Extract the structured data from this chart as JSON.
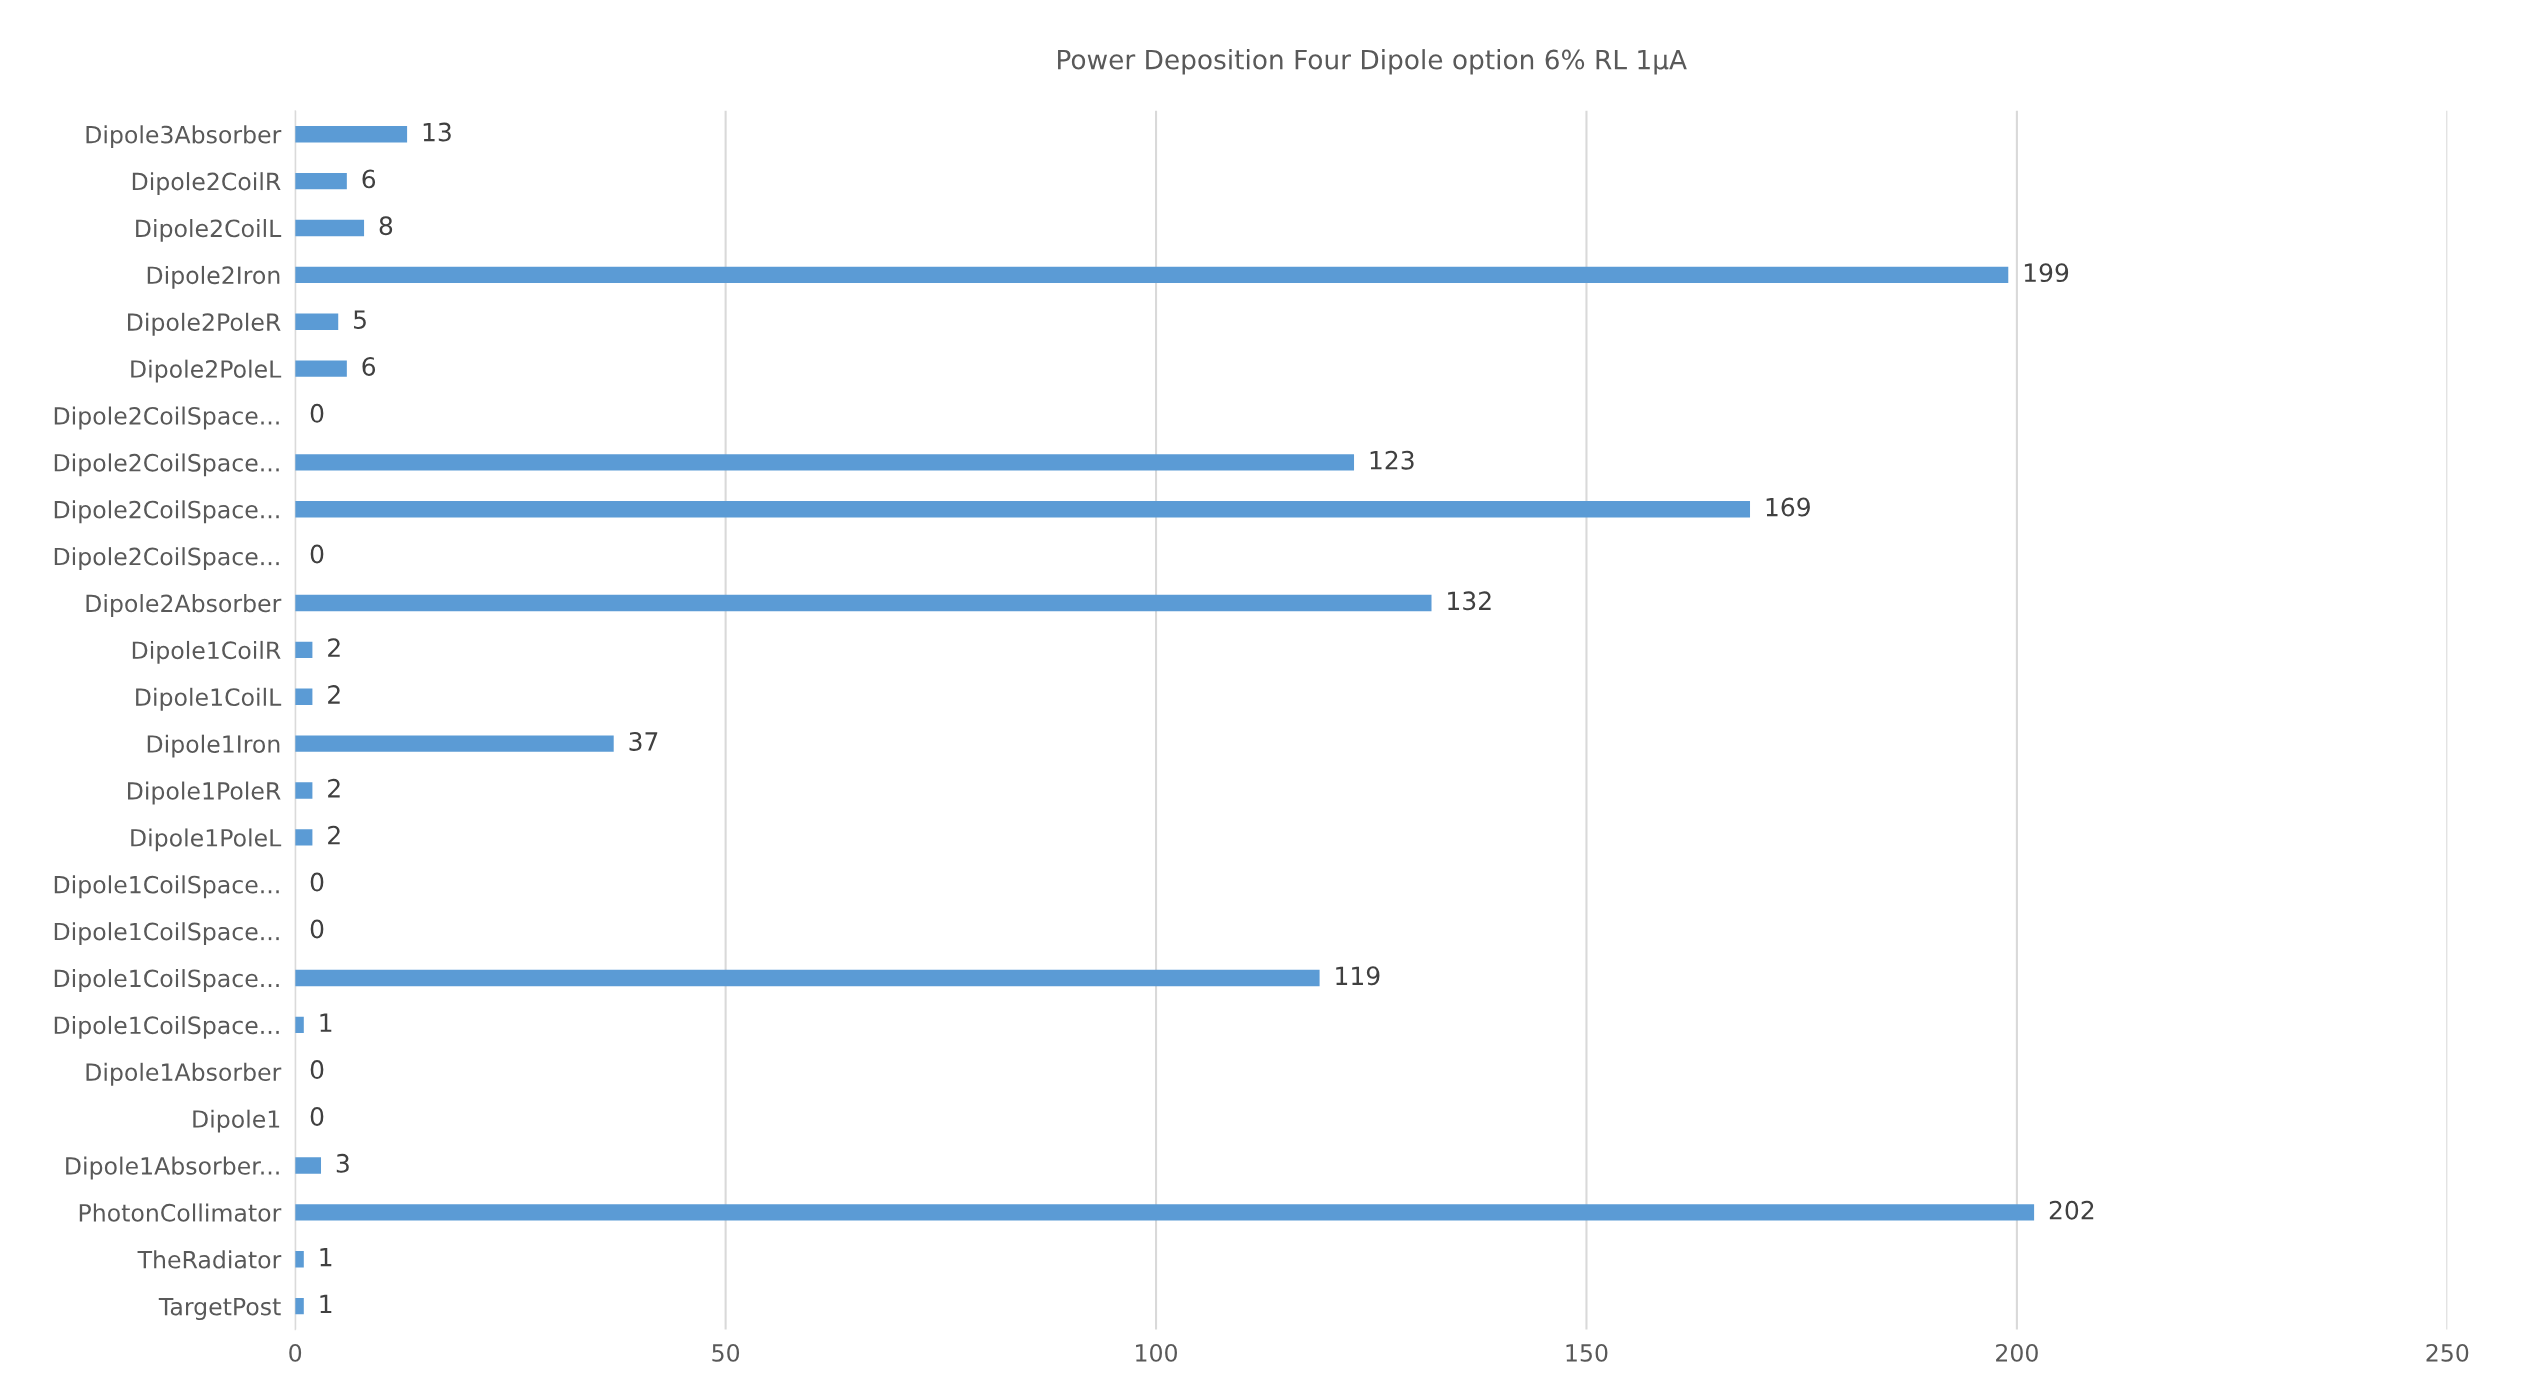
{
  "chart_data": {
    "type": "bar",
    "orientation": "horizontal",
    "title": "Power Deposition Four Dipole option 6% RL 1µA",
    "categories": [
      "Dipole3Absorber",
      "Dipole2CoilR",
      "Dipole2CoilL",
      "Dipole2Iron",
      "Dipole2PoleR",
      "Dipole2PoleL",
      "Dipole2CoilSpace...",
      "Dipole2CoilSpace...",
      "Dipole2CoilSpace...",
      "Dipole2CoilSpace...",
      "Dipole2Absorber",
      "Dipole1CoilR",
      "Dipole1CoilL",
      "Dipole1Iron",
      "Dipole1PoleR",
      "Dipole1PoleL",
      "Dipole1CoilSpace...",
      "Dipole1CoilSpace...",
      "Dipole1CoilSpace...",
      "Dipole1CoilSpace...",
      "Dipole1Absorber",
      "Dipole1",
      "Dipole1Absorber...",
      "PhotonCollimator",
      "TheRadiator",
      "TargetPost"
    ],
    "values": [
      13,
      6,
      8,
      199,
      5,
      6,
      0,
      123,
      169,
      0,
      132,
      2,
      2,
      37,
      2,
      2,
      0,
      0,
      119,
      1,
      0,
      0,
      3,
      202,
      1,
      1
    ],
    "color": "#5b9bd5",
    "data_labels": true,
    "xlim": [
      0,
      250
    ],
    "xticks": [
      0,
      50,
      100,
      150,
      200,
      250
    ],
    "grid": "x",
    "legend": false
  }
}
